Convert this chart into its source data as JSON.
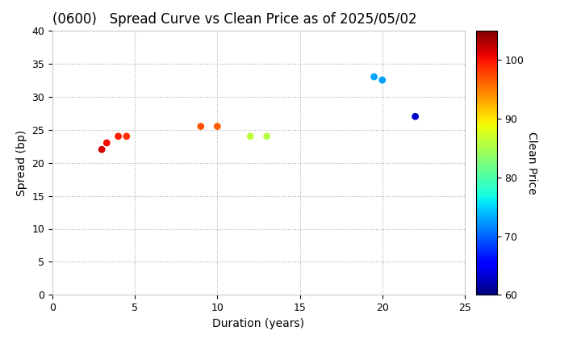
{
  "title": "(0600)   Spread Curve vs Clean Price as of 2025/05/02",
  "xlabel": "Duration (years)",
  "ylabel": "Spread (bp)",
  "colorbar_label": "Clean Price",
  "xlim": [
    0,
    25
  ],
  "ylim": [
    0,
    40
  ],
  "xticks": [
    0,
    5,
    10,
    15,
    20,
    25
  ],
  "yticks": [
    0,
    5,
    10,
    15,
    20,
    25,
    30,
    35,
    40
  ],
  "colorbar_ticks": [
    60,
    70,
    80,
    90,
    100
  ],
  "cmap": "jet",
  "clim": [
    60,
    105
  ],
  "points": [
    {
      "duration": 3.0,
      "spread": 22.0,
      "price": 101.5
    },
    {
      "duration": 3.3,
      "spread": 23.0,
      "price": 100.5
    },
    {
      "duration": 4.0,
      "spread": 24.0,
      "price": 99.5
    },
    {
      "duration": 4.5,
      "spread": 24.0,
      "price": 98.5
    },
    {
      "duration": 9.0,
      "spread": 25.5,
      "price": 97.0
    },
    {
      "duration": 10.0,
      "spread": 25.5,
      "price": 96.5
    },
    {
      "duration": 12.0,
      "spread": 24.0,
      "price": 86.0
    },
    {
      "duration": 13.0,
      "spread": 24.0,
      "price": 85.5
    },
    {
      "duration": 19.5,
      "spread": 33.0,
      "price": 73.0
    },
    {
      "duration": 20.0,
      "spread": 32.5,
      "price": 72.5
    },
    {
      "duration": 22.0,
      "spread": 27.0,
      "price": 63.0
    }
  ],
  "background_color": "#ffffff",
  "grid_color": "#aaaaaa",
  "marker_size": 40,
  "title_fontsize": 12,
  "label_fontsize": 10,
  "tick_fontsize": 9
}
